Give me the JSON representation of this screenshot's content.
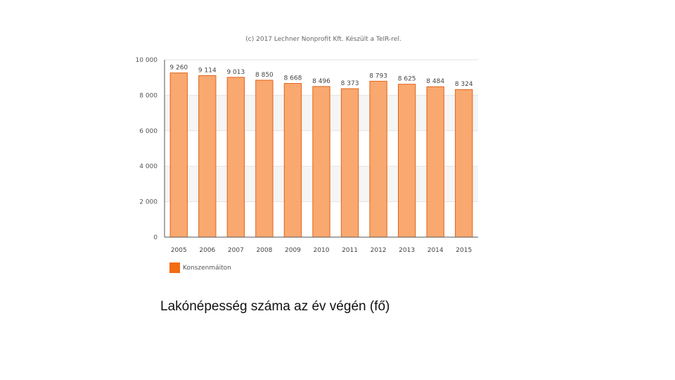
{
  "credit_text": "(c) 2017 Lechner Nonprofit Kft. Készült a TeIR-rel.",
  "caption": "Lakónépesség száma az év végén (fő)",
  "legend_label": "Konszenmáiton",
  "colors": {
    "bar_fill": "#f9a86f",
    "bar_stroke": "#e0651c",
    "legend_swatch": "#f26c12",
    "band": "#f5f5f5",
    "grid": "#e3e3e3"
  },
  "chart_data": {
    "type": "bar",
    "title": "",
    "xlabel": "",
    "ylabel": "",
    "categories": [
      "2005",
      "2006",
      "2007",
      "2008",
      "2009",
      "2010",
      "2011",
      "2012",
      "2013",
      "2014",
      "2015"
    ],
    "values": [
      9260,
      9114,
      9013,
      8850,
      8668,
      8496,
      8373,
      8793,
      8625,
      8484,
      8324
    ],
    "value_labels": [
      "9 260",
      "9 114",
      "9 013",
      "8 850",
      "8 668",
      "8 496",
      "8 373",
      "8 793",
      "8 625",
      "8 484",
      "8 324"
    ],
    "yticks": [
      0,
      2000,
      4000,
      6000,
      8000,
      10000
    ],
    "ytick_labels": [
      "0",
      "2 000",
      "4 000",
      "6 000",
      "8 000",
      "10 000"
    ],
    "ylim": [
      0,
      10000
    ],
    "grid": true,
    "legend_position": "bottom-left"
  }
}
